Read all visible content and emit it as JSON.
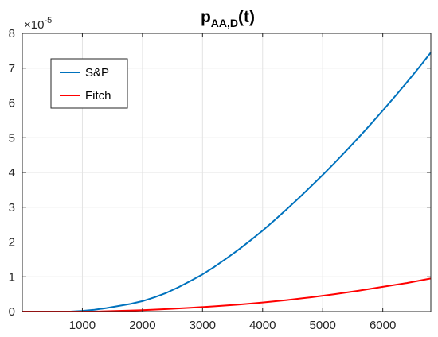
{
  "chart_data": {
    "type": "line",
    "title_main": "p",
    "title_sub": "AA,D",
    "title_tail": "(t)",
    "xlim": [
      0,
      6800
    ],
    "ylim": [
      0,
      8
    ],
    "x_ticks": [
      1000,
      2000,
      3000,
      4000,
      5000,
      6000
    ],
    "x_tick_labels": [
      "1000",
      "2000",
      "3000",
      "4000",
      "5000",
      "6000"
    ],
    "y_ticks": [
      0,
      1,
      2,
      3,
      4,
      5,
      6,
      7,
      8
    ],
    "y_tick_labels": [
      "0",
      "1",
      "2",
      "3",
      "4",
      "5",
      "6",
      "7",
      "8"
    ],
    "y_multiplier_base": "×10",
    "y_multiplier_exp": "-5",
    "grid": true,
    "legend_position": "top-left",
    "series": [
      {
        "name": "S&P",
        "color": "#0072BD",
        "x": [
          0,
          800,
          1000,
          1200,
          1400,
          1600,
          1800,
          2000,
          2200,
          2400,
          2600,
          2800,
          3000,
          3200,
          3400,
          3600,
          3800,
          4000,
          4200,
          4400,
          4600,
          4800,
          5000,
          5200,
          5400,
          5600,
          5800,
          6000,
          6200,
          6400,
          6600,
          6800
        ],
        "y": [
          0,
          0.0,
          0.02,
          0.05,
          0.1,
          0.16,
          0.22,
          0.3,
          0.41,
          0.54,
          0.7,
          0.88,
          1.07,
          1.29,
          1.53,
          1.78,
          2.05,
          2.33,
          2.63,
          2.94,
          3.26,
          3.59,
          3.93,
          4.28,
          4.64,
          5.01,
          5.39,
          5.78,
          6.18,
          6.59,
          7.01,
          7.45
        ]
      },
      {
        "name": "Fitch",
        "color": "#FF0000",
        "x": [
          0,
          1200,
          1600,
          2000,
          2400,
          2800,
          3200,
          3600,
          4000,
          4400,
          4800,
          5200,
          5600,
          6000,
          6400,
          6800
        ],
        "y": [
          0,
          0.0,
          0.02,
          0.04,
          0.07,
          0.11,
          0.15,
          0.2,
          0.26,
          0.33,
          0.41,
          0.5,
          0.6,
          0.71,
          0.82,
          0.95
        ]
      }
    ]
  }
}
